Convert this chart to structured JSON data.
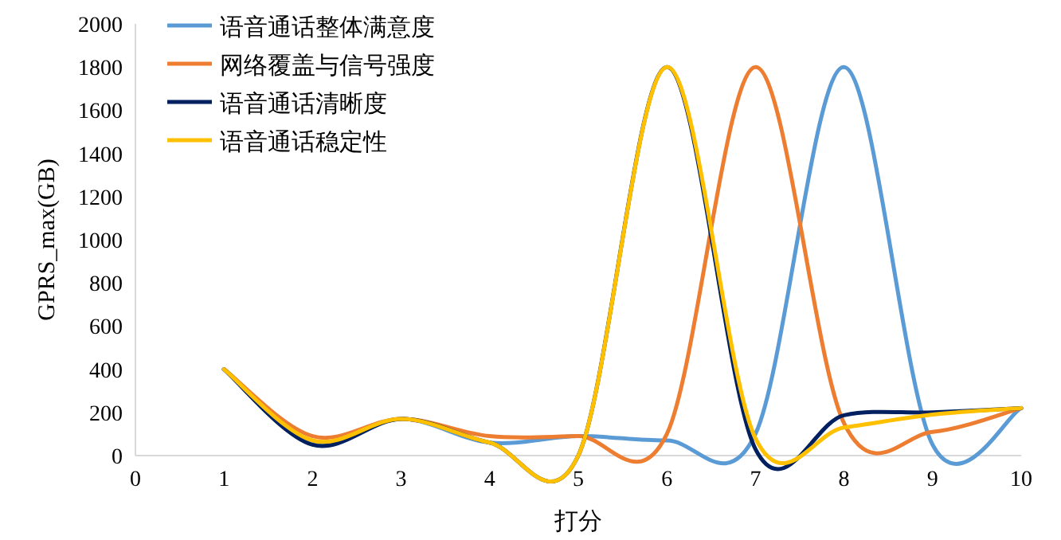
{
  "chart_data": {
    "type": "line",
    "xlabel": "打分",
    "ylabel": "GPRS_max(GB)",
    "x": [
      1,
      2,
      3,
      4,
      5,
      6,
      7,
      8,
      9,
      10
    ],
    "xlim": [
      0,
      10
    ],
    "xticks": [
      0,
      1,
      2,
      3,
      4,
      5,
      6,
      7,
      8,
      9,
      10
    ],
    "ylim": [
      0,
      2000
    ],
    "yticks": [
      0,
      200,
      400,
      600,
      800,
      1000,
      1200,
      1400,
      1600,
      1800,
      2000
    ],
    "grid": false,
    "legend": "top left",
    "marker": "none",
    "line_style": "solid",
    "series": [
      {
        "name": "语音通话整体满意度",
        "color": "#5b9bd5",
        "values": [
          400,
          60,
          170,
          60,
          90,
          70,
          100,
          1800,
          50,
          220
        ]
      },
      {
        "name": "网络覆盖与信号强度",
        "color": "#ed7d31",
        "values": [
          400,
          90,
          170,
          90,
          90,
          100,
          1800,
          150,
          110,
          220
        ]
      },
      {
        "name": "语音通话清晰度",
        "color": "#002060",
        "values": [
          400,
          50,
          170,
          60,
          0,
          1800,
          30,
          187,
          200,
          220
        ]
      },
      {
        "name": "语音通话稳定性",
        "color": "#ffc000",
        "values": [
          400,
          70,
          170,
          60,
          0,
          1800,
          80,
          130,
          190,
          220
        ]
      }
    ]
  }
}
